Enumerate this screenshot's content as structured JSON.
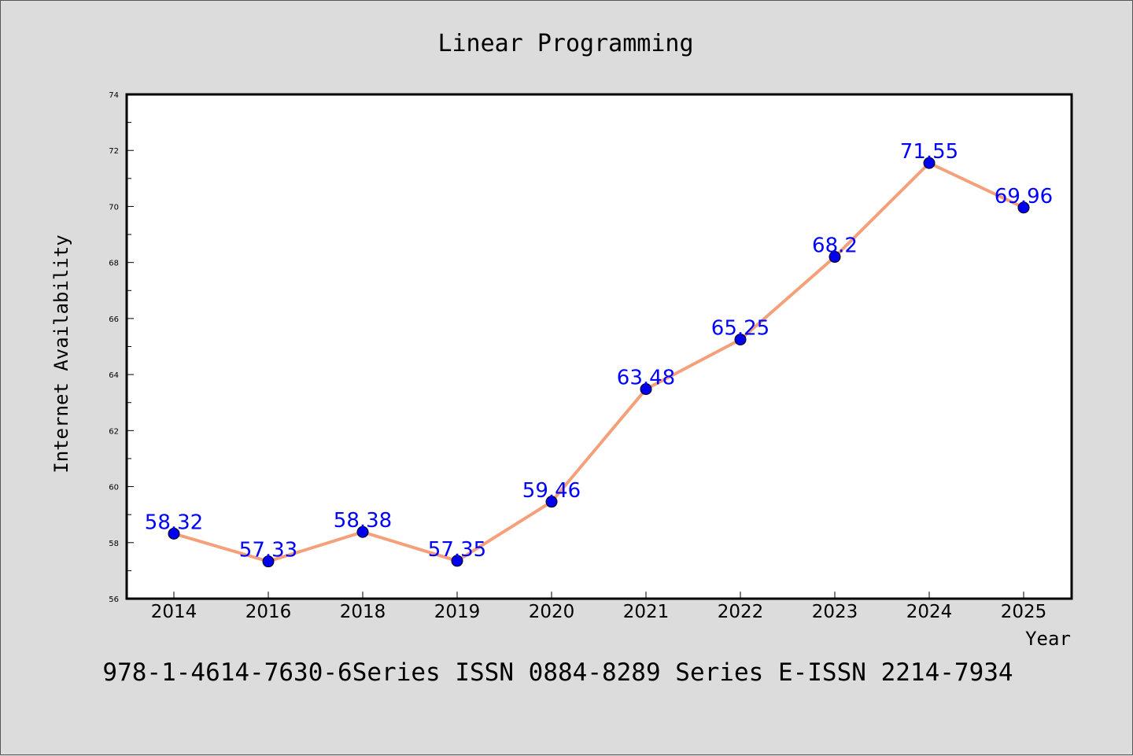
{
  "chart_data": {
    "type": "line",
    "title": "Linear Programming",
    "xlabel": "Year",
    "ylabel": "Internet Availability",
    "categories": [
      "2014",
      "2016",
      "2018",
      "2019",
      "2020",
      "2021",
      "2022",
      "2023",
      "2024",
      "2025"
    ],
    "series": [
      {
        "values": [
          58.32,
          57.33,
          58.38,
          57.35,
          59.46,
          63.48,
          65.25,
          68.2,
          71.55,
          69.96
        ],
        "data_labels": [
          "58.32",
          "57.33",
          "58.38",
          "57.35",
          "59.46",
          "63.48",
          "65.25",
          "68.2",
          "71.55",
          "69.96"
        ]
      }
    ],
    "ylim": [
      56,
      74
    ],
    "yticks": [
      "56",
      "58",
      "60",
      "62",
      "64",
      "66",
      "68",
      "70",
      "72",
      "74"
    ],
    "grid": false,
    "legend": "none",
    "colors": {
      "line": "#f4a07a",
      "marker": "#0000ee",
      "label": "#0000ff",
      "background": "#dcdcdc",
      "plot_background": "#ffffff"
    }
  },
  "footer": {
    "text": "978-1-4614-7630-6Series ISSN 0884-8289 Series E-ISSN 2214-7934"
  }
}
